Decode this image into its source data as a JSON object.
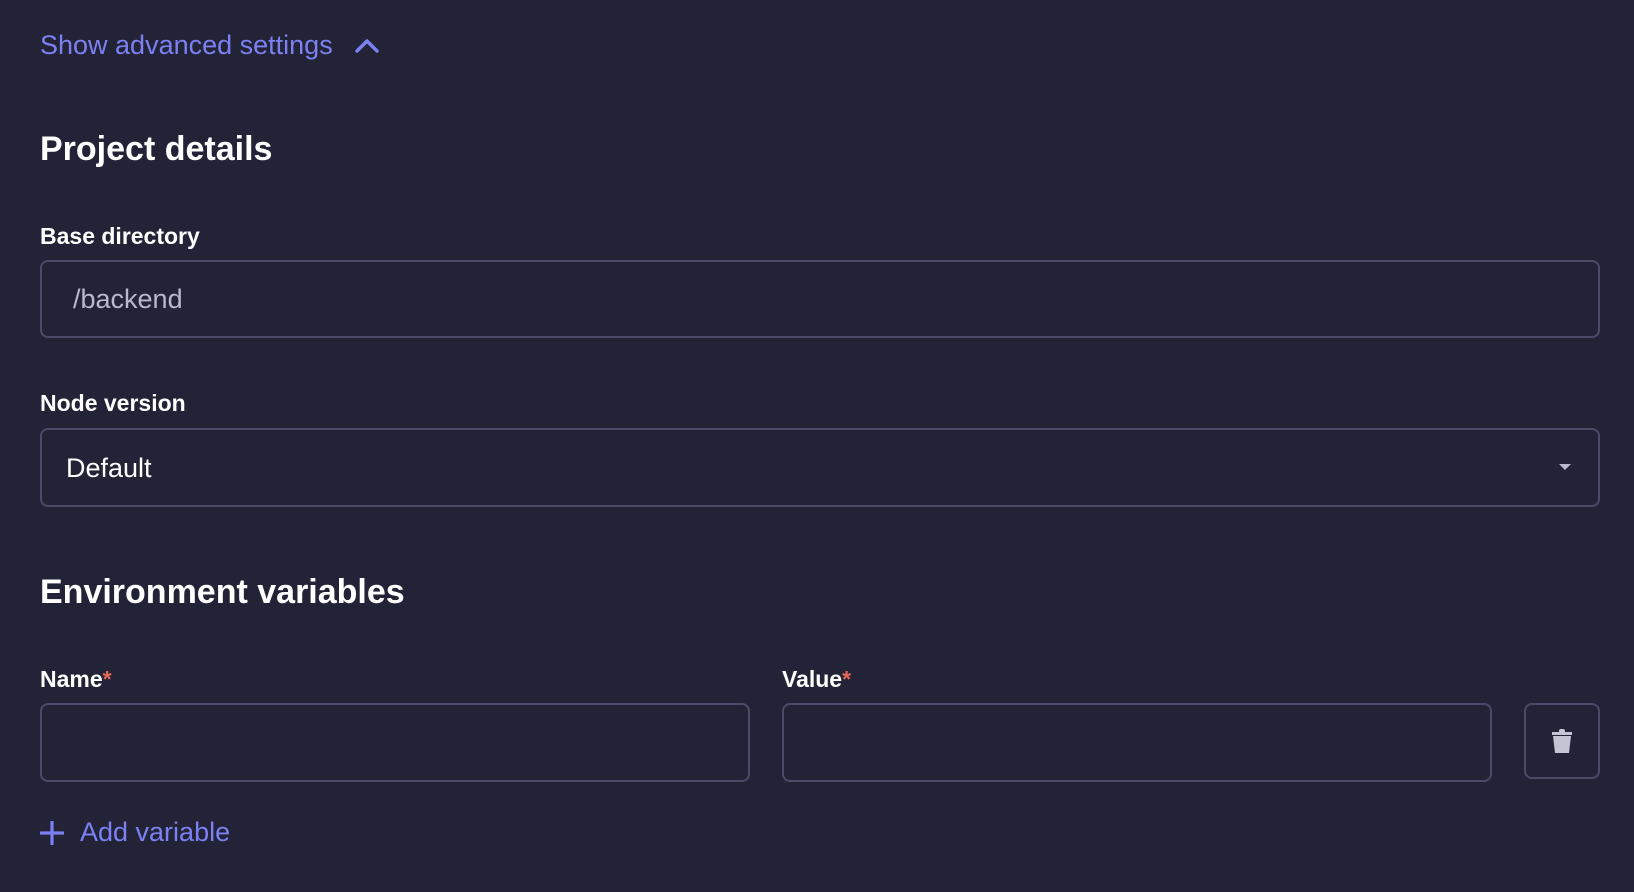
{
  "advanced_toggle": {
    "label": "Show advanced settings",
    "icon": "chevron-up-icon"
  },
  "project_details": {
    "title": "Project details",
    "base_directory": {
      "label": "Base directory",
      "value": "/backend"
    },
    "node_version": {
      "label": "Node version",
      "selected": "Default",
      "icon": "caret-down-icon"
    }
  },
  "env_vars": {
    "title": "Environment variables",
    "name_label": "Name",
    "value_label": "Value",
    "required_mark": "*",
    "rows": [
      {
        "name": "",
        "value": ""
      }
    ],
    "delete_icon": "trash-icon",
    "add_label": "Add variable",
    "add_icon": "plus-icon"
  },
  "colors": {
    "background": "#222336",
    "accent": "#7c80f2",
    "border": "#4a4b69",
    "required": "#e5675a"
  }
}
